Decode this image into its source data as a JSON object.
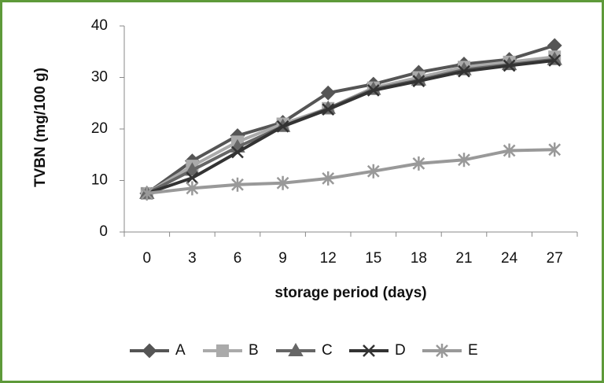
{
  "chart_data": {
    "type": "line",
    "x_label": "storage period (days)",
    "y_label": "TVBN (mg/100 g)",
    "categories": [
      "0",
      "3",
      "6",
      "9",
      "12",
      "15",
      "18",
      "21",
      "24",
      "27"
    ],
    "ylim": [
      0,
      40
    ],
    "yticks": [
      0,
      10,
      20,
      30,
      40
    ],
    "series": [
      {
        "name": "A",
        "color": "#555555",
        "marker": "diamond",
        "values": [
          7.5,
          13.8,
          18.7,
          21.3,
          27,
          28.7,
          31,
          32.6,
          33.5,
          36.2
        ]
      },
      {
        "name": "B",
        "color": "#aaaaaa",
        "marker": "square",
        "values": [
          7.5,
          12.8,
          17.5,
          21,
          24,
          28,
          30,
          32,
          33,
          34
        ]
      },
      {
        "name": "C",
        "color": "#666666",
        "marker": "triangle",
        "values": [
          7.5,
          12,
          16.5,
          20.5,
          24,
          27.7,
          29.5,
          31.5,
          32.5,
          33.5
        ]
      },
      {
        "name": "D",
        "color": "#333333",
        "marker": "x",
        "values": [
          7.5,
          10.5,
          15.5,
          20.5,
          23.8,
          27.5,
          29.3,
          31.2,
          32.3,
          33.3
        ]
      },
      {
        "name": "E",
        "color": "#999999",
        "marker": "star",
        "values": [
          7.5,
          8.5,
          9.2,
          9.5,
          10.4,
          11.8,
          13.3,
          14,
          15.8,
          16
        ]
      }
    ],
    "legend": "bottom"
  }
}
